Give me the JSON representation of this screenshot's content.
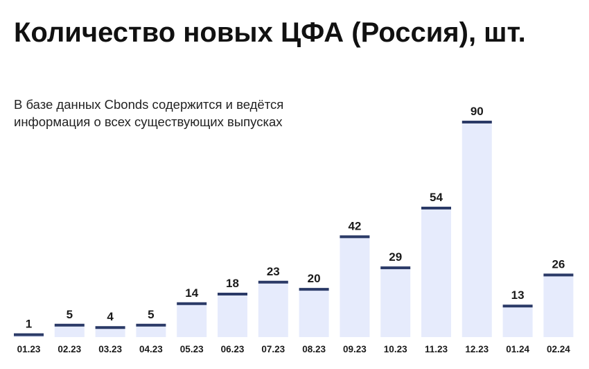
{
  "title": "Количество новых ЦФА (Россия), шт.",
  "subtitle": "В базе данных Cbonds содержится и ведётся информация о всех существующих выпусках",
  "colors": {
    "bar_fill": "#e6ebfc",
    "bar_cap": "#2b3a67",
    "label": "#1a1a1a"
  },
  "chart_data": {
    "type": "bar",
    "categories": [
      "01.23",
      "02.23",
      "03.23",
      "04.23",
      "05.23",
      "06.23",
      "07.23",
      "08.23",
      "09.23",
      "10.23",
      "11.23",
      "12.23",
      "01.24",
      "02.24"
    ],
    "values": [
      1,
      5,
      4,
      5,
      14,
      18,
      23,
      20,
      42,
      29,
      54,
      90,
      13,
      26
    ],
    "title": "Количество новых ЦФА (Россия), шт.",
    "subtitle": "В базе данных Cbonds содержится и ведётся информация о всех существующих выпусках",
    "xlabel": "",
    "ylabel": "",
    "ylim": [
      0,
      90
    ],
    "grid": false,
    "legend": "none"
  }
}
